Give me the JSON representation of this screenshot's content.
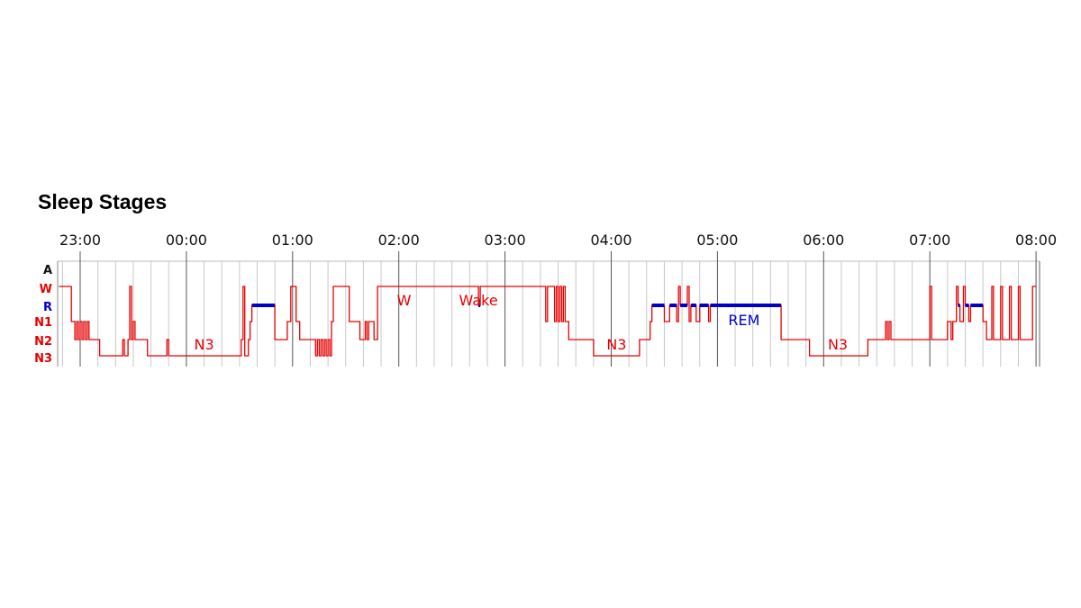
{
  "chart_data": {
    "type": "line",
    "title": "Sleep Stages",
    "x_range": [
      "22:48",
      "08:00"
    ],
    "x_ticks": [
      "23:00",
      "00:00",
      "01:00",
      "02:00",
      "03:00",
      "04:00",
      "05:00",
      "06:00",
      "07:00",
      "08:00"
    ],
    "minor_grid_minutes": 10,
    "grid": true,
    "y_categories": [
      "A",
      "W",
      "R",
      "N1",
      "N2",
      "N3"
    ],
    "y_category_colors": {
      "A": "#111111",
      "W": "#e60000",
      "R": "#0000cc",
      "N1": "#e60000",
      "N2": "#e60000",
      "N3": "#e60000"
    },
    "series": [
      {
        "color": "#e60000",
        "points": [
          [
            "22:48",
            "W"
          ],
          [
            "22:55",
            "N1"
          ],
          [
            "22:57",
            "N2"
          ],
          [
            "22:58",
            "N1"
          ],
          [
            "22:59",
            "N2"
          ],
          [
            "23:00",
            "N1"
          ],
          [
            "23:01",
            "N2"
          ],
          [
            "23:02",
            "N1"
          ],
          [
            "23:03",
            "N2"
          ],
          [
            "23:04",
            "N1"
          ],
          [
            "23:05",
            "N2"
          ],
          [
            "23:11",
            "N3"
          ],
          [
            "23:24",
            "N2"
          ],
          [
            "23:25",
            "N3"
          ],
          [
            "23:27",
            "N2"
          ],
          [
            "23:28",
            "W"
          ],
          [
            "23:29",
            "N2"
          ],
          [
            "23:30",
            "N1"
          ],
          [
            "23:31",
            "N2"
          ],
          [
            "23:38",
            "N3"
          ],
          [
            "23:49",
            "N2"
          ],
          [
            "23:50",
            "N3"
          ],
          [
            "00:31",
            "N2"
          ],
          [
            "00:32",
            "W"
          ],
          [
            "00:33",
            "N3"
          ],
          [
            "00:35",
            "N2"
          ],
          [
            "00:36",
            "N1"
          ],
          [
            "00:37",
            "R"
          ],
          [
            "00:50",
            "N2"
          ],
          [
            "00:57",
            "N1"
          ],
          [
            "00:59",
            "W"
          ],
          [
            "01:02",
            "N1"
          ],
          [
            "01:04",
            "N2"
          ],
          [
            "01:13",
            "N3"
          ],
          [
            "01:14",
            "N2"
          ],
          [
            "01:15",
            "N3"
          ],
          [
            "01:16",
            "N2"
          ],
          [
            "01:17",
            "N3"
          ],
          [
            "01:18",
            "N2"
          ],
          [
            "01:19",
            "N3"
          ],
          [
            "01:20",
            "N2"
          ],
          [
            "01:21",
            "N3"
          ],
          [
            "01:22",
            "N1"
          ],
          [
            "01:23",
            "W"
          ],
          [
            "01:32",
            "N1"
          ],
          [
            "01:38",
            "N2"
          ],
          [
            "01:41",
            "N1"
          ],
          [
            "01:42",
            "N2"
          ],
          [
            "01:43",
            "N1"
          ],
          [
            "01:46",
            "N2"
          ],
          [
            "01:48",
            "W"
          ],
          [
            "02:45",
            "R"
          ],
          [
            "02:46",
            "W"
          ],
          [
            "03:23",
            "N1"
          ],
          [
            "03:24",
            "W"
          ],
          [
            "03:28",
            "N1"
          ],
          [
            "03:29",
            "W"
          ],
          [
            "03:30",
            "N1"
          ],
          [
            "03:31",
            "W"
          ],
          [
            "03:32",
            "N1"
          ],
          [
            "03:33",
            "W"
          ],
          [
            "03:34",
            "N1"
          ],
          [
            "03:36",
            "N2"
          ],
          [
            "03:50",
            "N3"
          ],
          [
            "04:16",
            "N2"
          ],
          [
            "04:22",
            "N1"
          ],
          [
            "04:23",
            "R"
          ],
          [
            "04:30",
            "N1"
          ],
          [
            "04:33",
            "R"
          ],
          [
            "04:37",
            "N1"
          ],
          [
            "04:38",
            "W"
          ],
          [
            "04:39",
            "R"
          ],
          [
            "04:43",
            "W"
          ],
          [
            "04:44",
            "N1"
          ],
          [
            "04:45",
            "R"
          ],
          [
            "04:48",
            "N1"
          ],
          [
            "04:50",
            "R"
          ],
          [
            "04:55",
            "N1"
          ],
          [
            "04:56",
            "R"
          ],
          [
            "05:36",
            "N2"
          ],
          [
            "05:52",
            "N3"
          ],
          [
            "06:25",
            "N2"
          ],
          [
            "06:35",
            "N1"
          ],
          [
            "06:36",
            "N2"
          ],
          [
            "06:37",
            "N1"
          ],
          [
            "06:38",
            "N2"
          ],
          [
            "07:00",
            "W"
          ],
          [
            "07:01",
            "N2"
          ],
          [
            "07:10",
            "N1"
          ],
          [
            "07:12",
            "N2"
          ],
          [
            "07:13",
            "N1"
          ],
          [
            "07:15",
            "W"
          ],
          [
            "07:16",
            "R"
          ],
          [
            "07:17",
            "N1"
          ],
          [
            "07:19",
            "W"
          ],
          [
            "07:20",
            "R"
          ],
          [
            "07:22",
            "N1"
          ],
          [
            "07:23",
            "R"
          ],
          [
            "07:30",
            "N1"
          ],
          [
            "07:32",
            "N2"
          ],
          [
            "07:35",
            "W"
          ],
          [
            "07:36",
            "N2"
          ],
          [
            "07:40",
            "W"
          ],
          [
            "07:41",
            "N2"
          ],
          [
            "07:45",
            "W"
          ],
          [
            "07:46",
            "N2"
          ],
          [
            "07:50",
            "W"
          ],
          [
            "07:51",
            "N2"
          ],
          [
            "07:58",
            "W"
          ],
          [
            "08:00",
            "W"
          ]
        ]
      }
    ],
    "annotations": [
      {
        "text": "N3",
        "x": "00:10",
        "y": "N3",
        "color": "#e60000"
      },
      {
        "text": "W",
        "x": "02:03",
        "y": "W",
        "color": "#e60000"
      },
      {
        "text": "Wake",
        "x": "02:45",
        "y": "W",
        "color": "#e60000"
      },
      {
        "text": "N3",
        "x": "04:03",
        "y": "N3",
        "color": "#e60000"
      },
      {
        "text": "REM",
        "x": "05:15",
        "y": "N1",
        "color": "#0000cc"
      },
      {
        "text": "N3",
        "x": "06:08",
        "y": "N3",
        "color": "#e60000"
      }
    ]
  }
}
